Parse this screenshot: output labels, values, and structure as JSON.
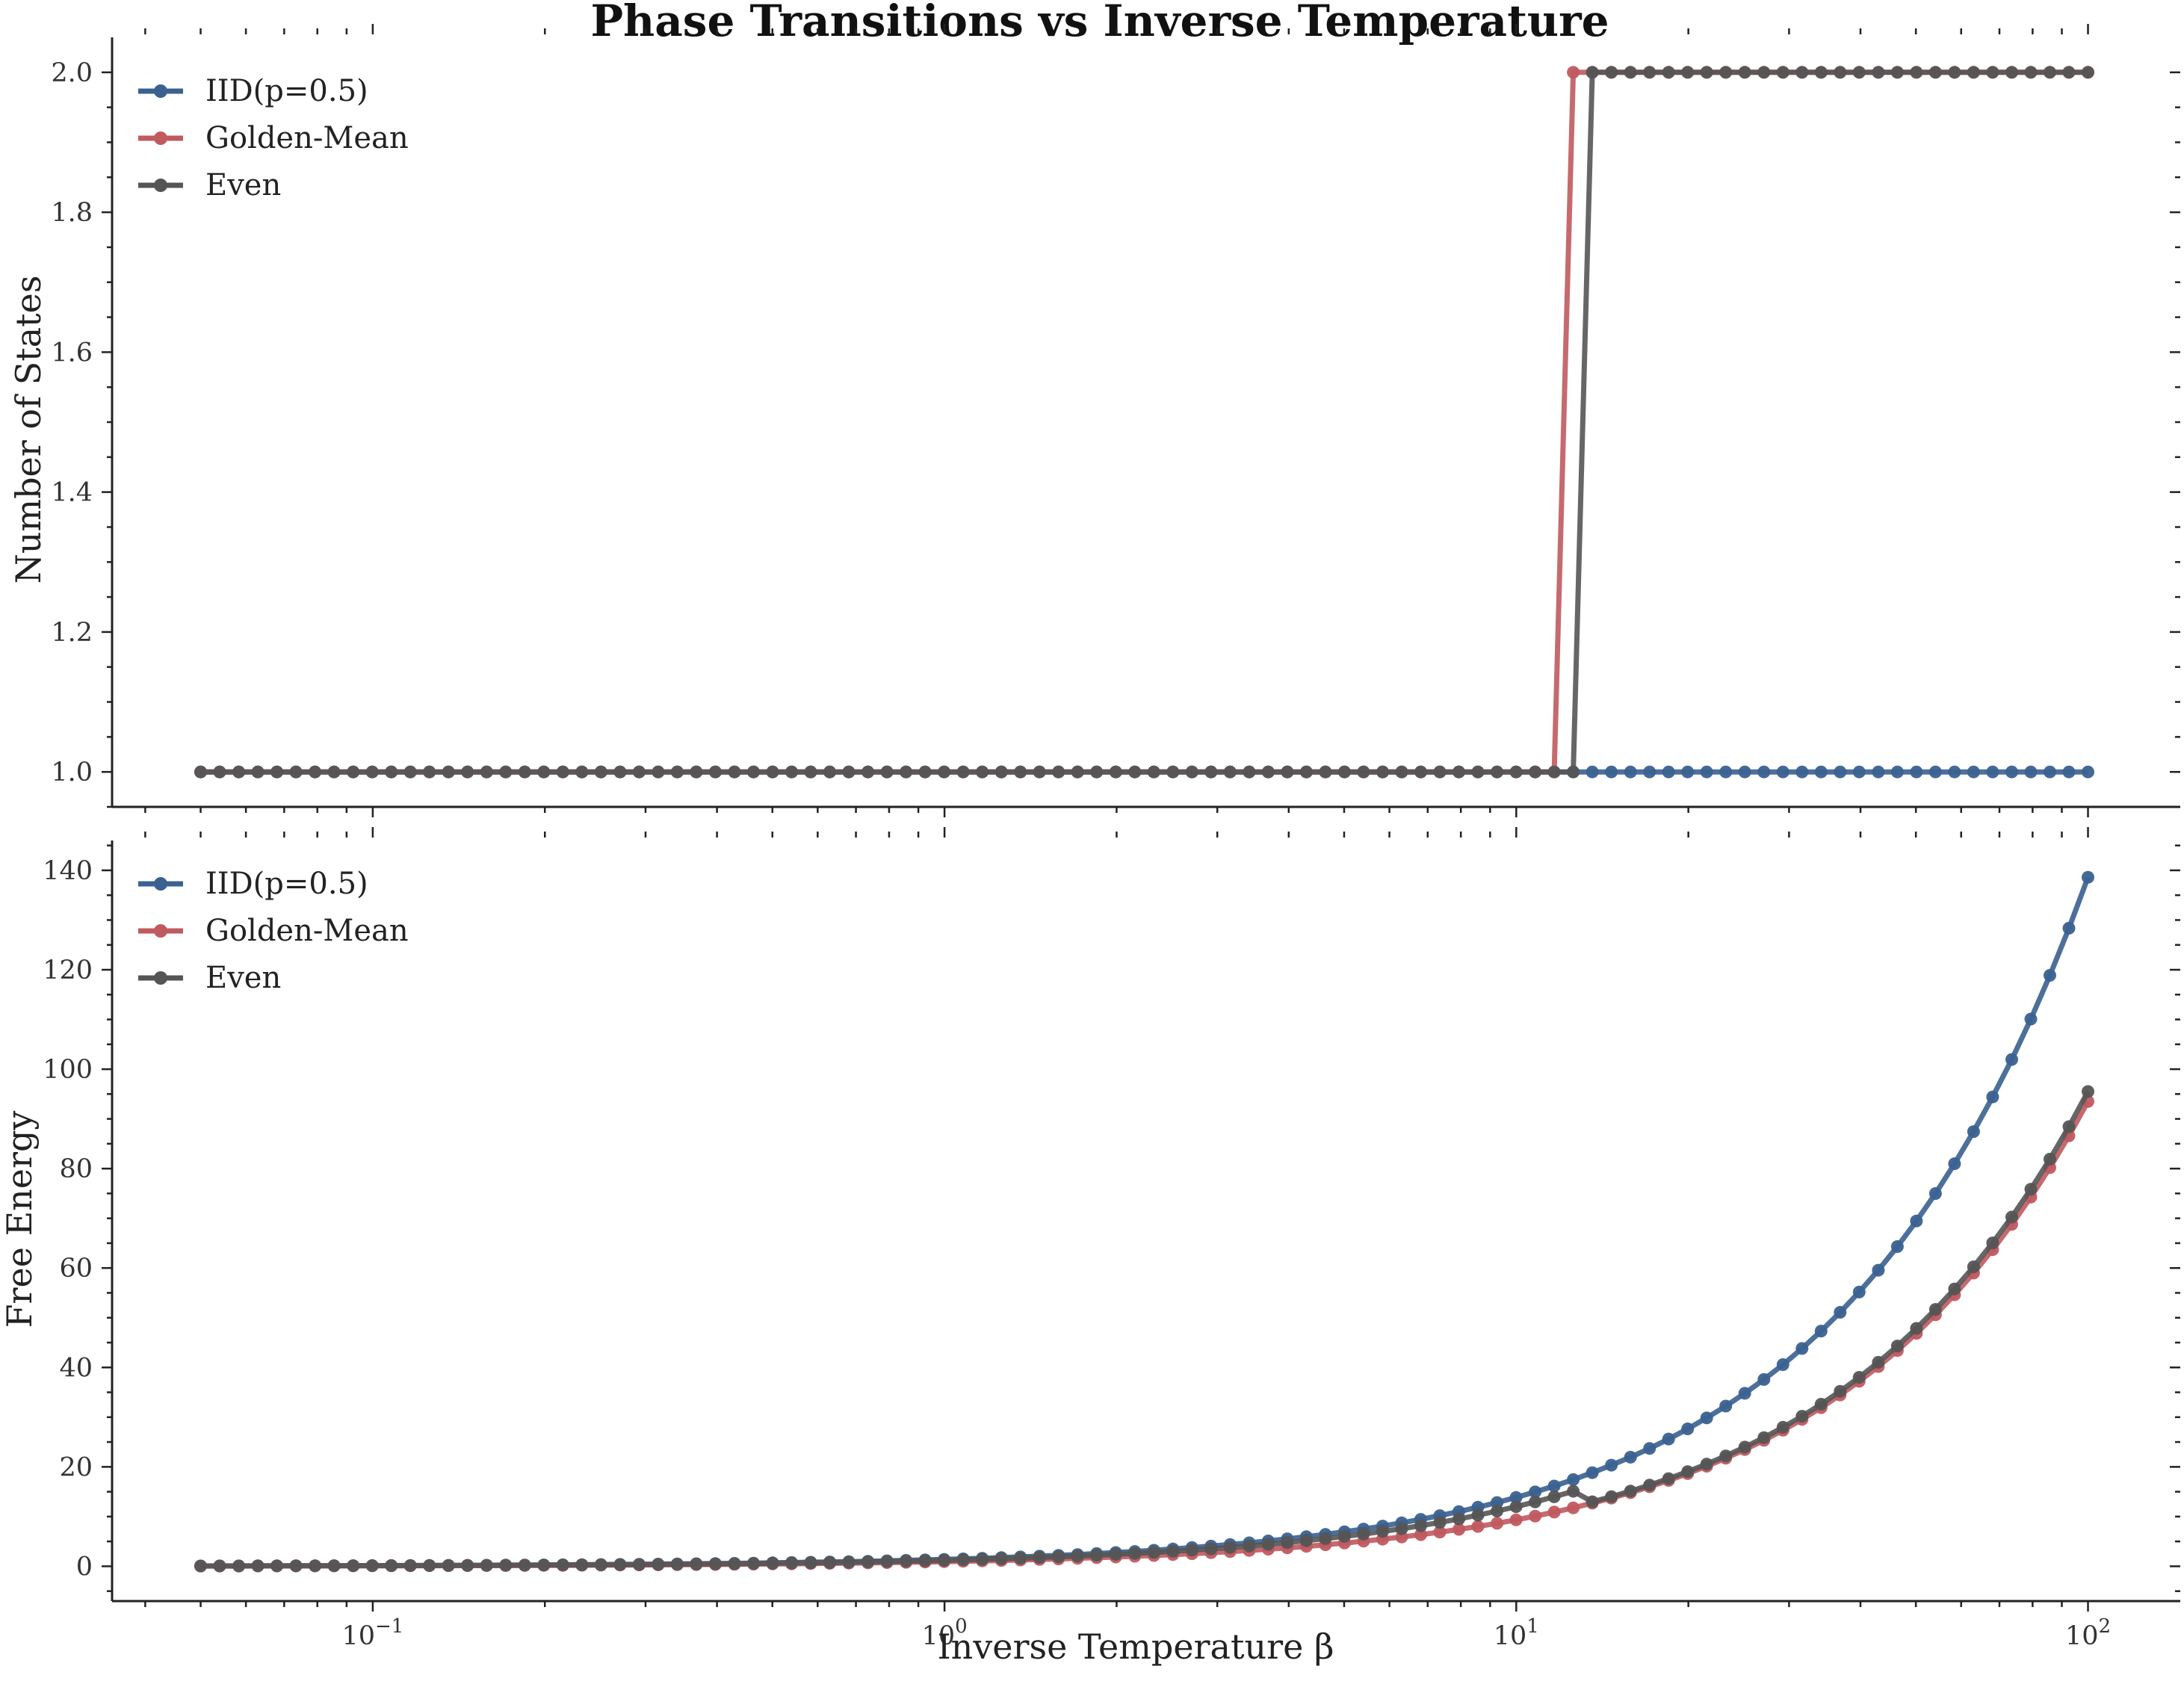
{
  "chart_data": {
    "title": "Phase Transitions vs Inverse Temperature",
    "xlabel": "Inverse Temperature β",
    "x_scale": "log",
    "xlim": [
      0.035,
      145
    ],
    "x_ticks": [
      {
        "value": 0.1,
        "base": "10",
        "exp": "−1"
      },
      {
        "value": 1,
        "base": "10",
        "exp": "0"
      },
      {
        "value": 10,
        "base": "10",
        "exp": "1"
      },
      {
        "value": 100,
        "base": "10",
        "exp": "2"
      }
    ],
    "x": {
      "start": 0.05,
      "end": 100,
      "n": 100
    },
    "subplots": [
      {
        "type": "line",
        "ylabel": "Number of States",
        "ylim": [
          0.95,
          2.05
        ],
        "y_ticks": [
          "1.0",
          "1.2",
          "1.4",
          "1.6",
          "1.8",
          "2.0"
        ],
        "legend": "top-left",
        "series": [
          {
            "name": "IID(p=0.5)",
            "color": "#3a6190",
            "rule": "constant",
            "value": 1
          },
          {
            "name": "Golden-Mean",
            "color": "#c05a5f",
            "rule": "step",
            "low": 1,
            "high": 2,
            "threshold": 11.8
          },
          {
            "name": "Even",
            "color": "#555555",
            "rule": "step",
            "low": 1,
            "high": 2,
            "threshold": 12.8
          }
        ]
      },
      {
        "type": "line",
        "ylabel": "Free Energy",
        "ylim": [
          -7,
          146
        ],
        "y_ticks": [
          "0",
          "20",
          "40",
          "60",
          "80",
          "100",
          "120",
          "140"
        ],
        "legend": "top-left",
        "series": [
          {
            "name": "IID(p=0.5)",
            "color": "#3a6190",
            "rule": "linear",
            "scale": 1.386
          },
          {
            "name": "Golden-Mean",
            "color": "#c05a5f",
            "rule": "linear",
            "scale": 0.935
          },
          {
            "name": "Even",
            "color": "#555555",
            "rule": "piecewise",
            "scale_low": 1.2,
            "scale_high": 0.955,
            "threshold": 12.8
          }
        ]
      }
    ]
  }
}
